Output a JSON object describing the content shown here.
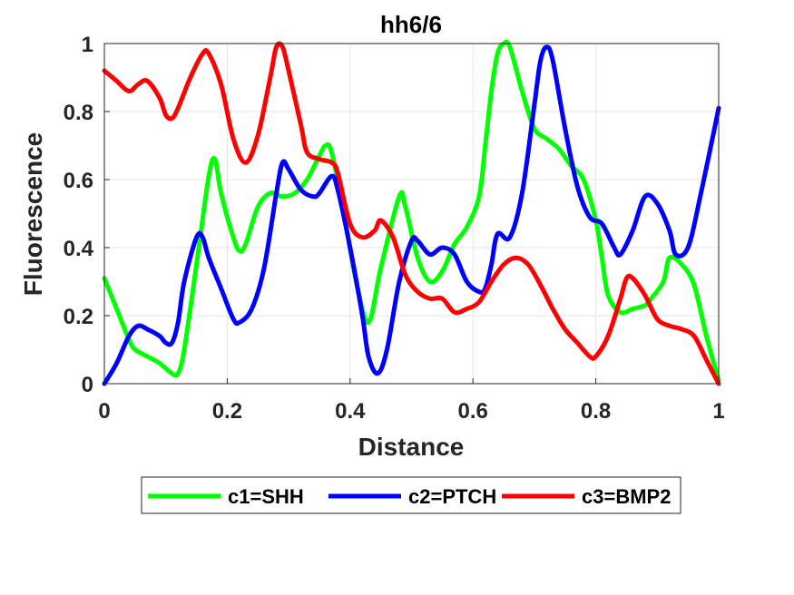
{
  "chart_data": {
    "type": "line",
    "title": "hh6/6",
    "xlabel": "Distance",
    "ylabel": "Fluorescence",
    "xlim": [
      0,
      1
    ],
    "ylim": [
      0,
      1
    ],
    "xticks": [
      "0",
      "0.2",
      "0.4",
      "0.6",
      "0.8",
      "1"
    ],
    "yticks": [
      "0",
      "0.2",
      "0.4",
      "0.6",
      "0.8",
      "1"
    ],
    "grid": true,
    "legend_position": "bottom",
    "series": [
      {
        "name": "c1=SHH",
        "color": "#00ff00",
        "x": [
          0,
          0.02,
          0.04,
          0.05,
          0.07,
          0.09,
          0.11,
          0.12,
          0.13,
          0.15,
          0.17,
          0.18,
          0.19,
          0.21,
          0.22,
          0.23,
          0.25,
          0.27,
          0.29,
          0.31,
          0.33,
          0.35,
          0.36,
          0.37,
          0.39,
          0.41,
          0.43,
          0.45,
          0.48,
          0.49,
          0.51,
          0.53,
          0.55,
          0.57,
          0.59,
          0.61,
          0.62,
          0.63,
          0.64,
          0.65,
          0.66,
          0.68,
          0.7,
          0.72,
          0.74,
          0.76,
          0.78,
          0.8,
          0.81,
          0.82,
          0.84,
          0.86,
          0.88,
          0.89,
          0.91,
          0.92,
          0.94,
          0.96,
          0.98,
          1
        ],
        "y": [
          0.31,
          0.22,
          0.13,
          0.1,
          0.08,
          0.06,
          0.03,
          0.03,
          0.1,
          0.35,
          0.61,
          0.66,
          0.56,
          0.43,
          0.39,
          0.41,
          0.52,
          0.56,
          0.55,
          0.56,
          0.6,
          0.67,
          0.7,
          0.68,
          0.5,
          0.3,
          0.18,
          0.34,
          0.55,
          0.52,
          0.37,
          0.3,
          0.33,
          0.41,
          0.46,
          0.55,
          0.7,
          0.86,
          0.97,
          1.0,
          0.99,
          0.86,
          0.75,
          0.72,
          0.69,
          0.64,
          0.6,
          0.48,
          0.37,
          0.26,
          0.21,
          0.22,
          0.23,
          0.25,
          0.3,
          0.37,
          0.35,
          0.29,
          0.14,
          0.01
        ]
      },
      {
        "name": "c2=PTCH",
        "color": "#0000ff",
        "x": [
          0,
          0.02,
          0.04,
          0.055,
          0.07,
          0.09,
          0.1,
          0.11,
          0.12,
          0.13,
          0.15,
          0.16,
          0.17,
          0.19,
          0.21,
          0.22,
          0.24,
          0.26,
          0.28,
          0.29,
          0.3,
          0.32,
          0.34,
          0.35,
          0.37,
          0.38,
          0.4,
          0.42,
          0.43,
          0.445,
          0.46,
          0.48,
          0.5,
          0.51,
          0.53,
          0.55,
          0.57,
          0.59,
          0.61,
          0.62,
          0.63,
          0.64,
          0.66,
          0.68,
          0.7,
          0.71,
          0.72,
          0.73,
          0.75,
          0.77,
          0.79,
          0.81,
          0.83,
          0.84,
          0.86,
          0.88,
          0.9,
          0.92,
          0.93,
          0.95,
          0.97,
          1
        ],
        "y": [
          0.0,
          0.06,
          0.14,
          0.17,
          0.16,
          0.14,
          0.12,
          0.12,
          0.18,
          0.3,
          0.43,
          0.43,
          0.37,
          0.28,
          0.19,
          0.18,
          0.22,
          0.34,
          0.56,
          0.65,
          0.63,
          0.57,
          0.55,
          0.56,
          0.61,
          0.57,
          0.4,
          0.2,
          0.08,
          0.03,
          0.1,
          0.3,
          0.42,
          0.42,
          0.38,
          0.4,
          0.38,
          0.3,
          0.27,
          0.28,
          0.35,
          0.44,
          0.43,
          0.56,
          0.82,
          0.95,
          0.99,
          0.95,
          0.75,
          0.58,
          0.49,
          0.47,
          0.4,
          0.38,
          0.45,
          0.55,
          0.53,
          0.45,
          0.38,
          0.4,
          0.55,
          0.81
        ]
      },
      {
        "name": "c3=BMP2",
        "color": "#ff0000",
        "x": [
          0,
          0.02,
          0.04,
          0.055,
          0.07,
          0.09,
          0.1,
          0.11,
          0.12,
          0.14,
          0.16,
          0.17,
          0.19,
          0.21,
          0.23,
          0.25,
          0.27,
          0.28,
          0.29,
          0.3,
          0.32,
          0.33,
          0.35,
          0.37,
          0.38,
          0.4,
          0.42,
          0.44,
          0.45,
          0.47,
          0.49,
          0.51,
          0.53,
          0.55,
          0.57,
          0.59,
          0.61,
          0.63,
          0.65,
          0.67,
          0.69,
          0.71,
          0.73,
          0.75,
          0.77,
          0.79,
          0.8,
          0.82,
          0.84,
          0.85,
          0.86,
          0.88,
          0.9,
          0.92,
          0.94,
          0.96,
          0.98,
          1
        ],
        "y": [
          0.92,
          0.89,
          0.86,
          0.88,
          0.89,
          0.84,
          0.79,
          0.78,
          0.81,
          0.9,
          0.97,
          0.97,
          0.88,
          0.72,
          0.65,
          0.73,
          0.9,
          0.99,
          0.99,
          0.92,
          0.76,
          0.68,
          0.66,
          0.65,
          0.62,
          0.47,
          0.43,
          0.45,
          0.48,
          0.43,
          0.32,
          0.27,
          0.25,
          0.25,
          0.21,
          0.22,
          0.24,
          0.3,
          0.35,
          0.37,
          0.35,
          0.29,
          0.22,
          0.16,
          0.12,
          0.08,
          0.08,
          0.14,
          0.25,
          0.31,
          0.31,
          0.26,
          0.19,
          0.17,
          0.16,
          0.14,
          0.07,
          0.0
        ]
      }
    ]
  }
}
